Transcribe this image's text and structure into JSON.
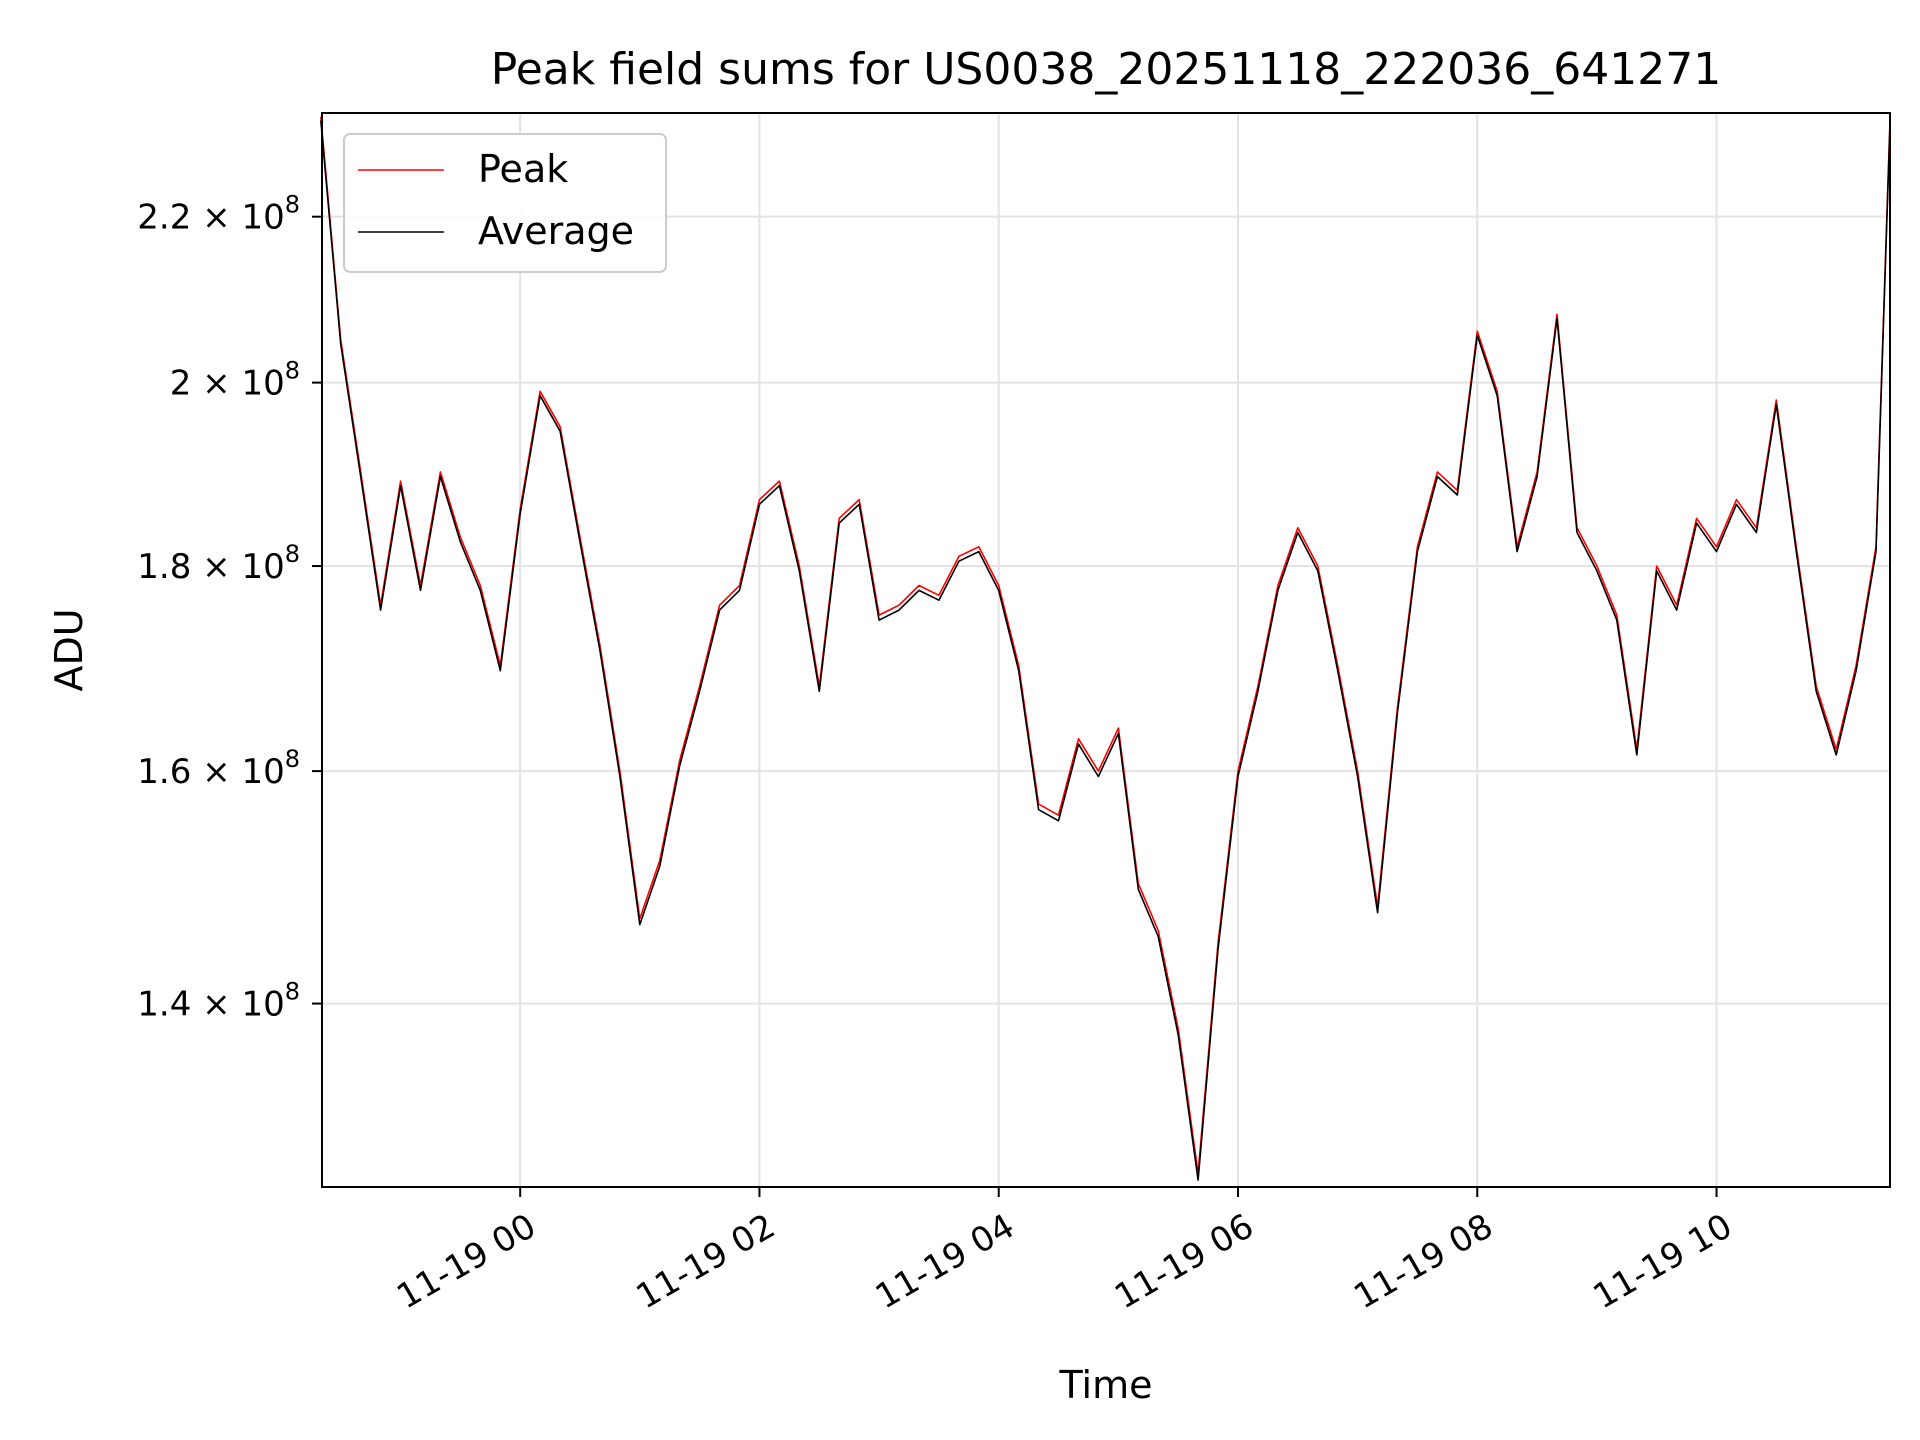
{
  "chart_data": {
    "type": "line",
    "title": "Peak field sums for US0038_20251118_222036_641271",
    "xlabel": "Time",
    "ylabel": "ADU",
    "y_scale": "log",
    "xlim": [
      "2025-11-18T22:20:36",
      "2025-11-19T11:27:00"
    ],
    "ylim": [
      126000000,
      233500000
    ],
    "x_ticks": [
      "11-19 00",
      "11-19 02",
      "11-19 04",
      "11-19 06",
      "11-19 08",
      "11-19 10"
    ],
    "x_tick_times": [
      "2025-11-19T00:00",
      "2025-11-19T02:00",
      "2025-11-19T04:00",
      "2025-11-19T06:00",
      "2025-11-19T08:00",
      "2025-11-19T10:00"
    ],
    "y_ticks": [
      {
        "value": 140000000,
        "mantissa": "1.4",
        "base": "10",
        "exp": "8"
      },
      {
        "value": 160000000,
        "mantissa": "1.6",
        "base": "10",
        "exp": "8"
      },
      {
        "value": 180000000,
        "mantissa": "1.8",
        "base": "10",
        "exp": "8"
      },
      {
        "value": 200000000,
        "mantissa": "2",
        "base": "10",
        "exp": "8"
      },
      {
        "value": 220000000,
        "mantissa": "2.2",
        "base": "10",
        "exp": "8"
      }
    ],
    "grid": true,
    "legend": {
      "position": "upper-left",
      "entries": [
        "Peak",
        "Average"
      ]
    },
    "series": [
      {
        "name": "Peak",
        "color": "#ff0000",
        "x": [
          "2025-11-18T22:20",
          "2025-11-18T22:30",
          "2025-11-18T22:40",
          "2025-11-18T22:50",
          "2025-11-18T23:00",
          "2025-11-18T23:10",
          "2025-11-18T23:20",
          "2025-11-18T23:30",
          "2025-11-18T23:40",
          "2025-11-18T23:50",
          "2025-11-19T00:00",
          "2025-11-19T00:10",
          "2025-11-19T00:20",
          "2025-11-19T00:30",
          "2025-11-19T00:40",
          "2025-11-19T00:50",
          "2025-11-19T01:00",
          "2025-11-19T01:10",
          "2025-11-19T01:20",
          "2025-11-19T01:30",
          "2025-11-19T01:40",
          "2025-11-19T01:50",
          "2025-11-19T02:00",
          "2025-11-19T02:10",
          "2025-11-19T02:20",
          "2025-11-19T02:30",
          "2025-11-19T02:40",
          "2025-11-19T02:50",
          "2025-11-19T03:00",
          "2025-11-19T03:10",
          "2025-11-19T03:20",
          "2025-11-19T03:30",
          "2025-11-19T03:40",
          "2025-11-19T03:50",
          "2025-11-19T04:00",
          "2025-11-19T04:10",
          "2025-11-19T04:20",
          "2025-11-19T04:30",
          "2025-11-19T04:40",
          "2025-11-19T04:50",
          "2025-11-19T05:00",
          "2025-11-19T05:10",
          "2025-11-19T05:20",
          "2025-11-19T05:30",
          "2025-11-19T05:40",
          "2025-11-19T05:50",
          "2025-11-19T06:00",
          "2025-11-19T06:10",
          "2025-11-19T06:20",
          "2025-11-19T06:30",
          "2025-11-19T06:40",
          "2025-11-19T06:50",
          "2025-11-19T07:00",
          "2025-11-19T07:10",
          "2025-11-19T07:20",
          "2025-11-19T07:30",
          "2025-11-19T07:40",
          "2025-11-19T07:50",
          "2025-11-19T08:00",
          "2025-11-19T08:10",
          "2025-11-19T08:20",
          "2025-11-19T08:30",
          "2025-11-19T08:40",
          "2025-11-19T08:50",
          "2025-11-19T09:00",
          "2025-11-19T09:10",
          "2025-11-19T09:20",
          "2025-11-19T09:30",
          "2025-11-19T09:40",
          "2025-11-19T09:50",
          "2025-11-19T10:00",
          "2025-11-19T10:10",
          "2025-11-19T10:20",
          "2025-11-19T10:30",
          "2025-11-19T10:40",
          "2025-11-19T10:50",
          "2025-11-19T11:00",
          "2025-11-19T11:10",
          "2025-11-19T11:20",
          "2025-11-19T11:27"
        ],
        "values": [
          233000000,
          205000000,
          190000000,
          176000000,
          189000000,
          178000000,
          190000000,
          183000000,
          178000000,
          170000000,
          186000000,
          199000000,
          195000000,
          183000000,
          172000000,
          160000000,
          147000000,
          152000000,
          161000000,
          168000000,
          176000000,
          178000000,
          187000000,
          189000000,
          180000000,
          168000000,
          185000000,
          187000000,
          175000000,
          176000000,
          178000000,
          177000000,
          181000000,
          182000000,
          178000000,
          170000000,
          157000000,
          156000000,
          163000000,
          160000000,
          164000000,
          150000000,
          146000000,
          138000000,
          127000000,
          145000000,
          160000000,
          168000000,
          178000000,
          184000000,
          180000000,
          170000000,
          160000000,
          148000000,
          166000000,
          182000000,
          190000000,
          188000000,
          206000000,
          199000000,
          182000000,
          190000000,
          208000000,
          184000000,
          180000000,
          175000000,
          162000000,
          180000000,
          176000000,
          185000000,
          182000000,
          187000000,
          184000000,
          198000000,
          182000000,
          168000000,
          162000000,
          170000000,
          182000000,
          232500000
        ]
      },
      {
        "name": "Average",
        "color": "#000000",
        "x": [
          "2025-11-18T22:20",
          "2025-11-18T22:30",
          "2025-11-18T22:40",
          "2025-11-18T22:50",
          "2025-11-18T23:00",
          "2025-11-18T23:10",
          "2025-11-18T23:20",
          "2025-11-18T23:30",
          "2025-11-18T23:40",
          "2025-11-18T23:50",
          "2025-11-19T00:00",
          "2025-11-19T00:10",
          "2025-11-19T00:20",
          "2025-11-19T00:30",
          "2025-11-19T00:40",
          "2025-11-19T00:50",
          "2025-11-19T01:00",
          "2025-11-19T01:10",
          "2025-11-19T01:20",
          "2025-11-19T01:30",
          "2025-11-19T01:40",
          "2025-11-19T01:50",
          "2025-11-19T02:00",
          "2025-11-19T02:10",
          "2025-11-19T02:20",
          "2025-11-19T02:30",
          "2025-11-19T02:40",
          "2025-11-19T02:50",
          "2025-11-19T03:00",
          "2025-11-19T03:10",
          "2025-11-19T03:20",
          "2025-11-19T03:30",
          "2025-11-19T03:40",
          "2025-11-19T03:50",
          "2025-11-19T04:00",
          "2025-11-19T04:10",
          "2025-11-19T04:20",
          "2025-11-19T04:30",
          "2025-11-19T04:40",
          "2025-11-19T04:50",
          "2025-11-19T05:00",
          "2025-11-19T05:10",
          "2025-11-19T05:20",
          "2025-11-19T05:30",
          "2025-11-19T05:40",
          "2025-11-19T05:50",
          "2025-11-19T06:00",
          "2025-11-19T06:10",
          "2025-11-19T06:20",
          "2025-11-19T06:30",
          "2025-11-19T06:40",
          "2025-11-19T06:50",
          "2025-11-19T07:00",
          "2025-11-19T07:10",
          "2025-11-19T07:20",
          "2025-11-19T07:30",
          "2025-11-19T07:40",
          "2025-11-19T07:50",
          "2025-11-19T08:00",
          "2025-11-19T08:10",
          "2025-11-19T08:20",
          "2025-11-19T08:30",
          "2025-11-19T08:40",
          "2025-11-19T08:50",
          "2025-11-19T09:00",
          "2025-11-19T09:10",
          "2025-11-19T09:20",
          "2025-11-19T09:30",
          "2025-11-19T09:40",
          "2025-11-19T09:50",
          "2025-11-19T10:00",
          "2025-11-19T10:10",
          "2025-11-19T10:20",
          "2025-11-19T10:30",
          "2025-11-19T10:40",
          "2025-11-19T10:50",
          "2025-11-19T11:00",
          "2025-11-19T11:10",
          "2025-11-19T11:20",
          "2025-11-19T11:27"
        ],
        "values": [
          232500000,
          204500000,
          189500000,
          175500000,
          188500000,
          177500000,
          189500000,
          182500000,
          177500000,
          169500000,
          185500000,
          198500000,
          194500000,
          182500000,
          171500000,
          159500000,
          146500000,
          151500000,
          160500000,
          167500000,
          175500000,
          177500000,
          186500000,
          188500000,
          179500000,
          167500000,
          184500000,
          186500000,
          174500000,
          175500000,
          177500000,
          176500000,
          180500000,
          181500000,
          177500000,
          169500000,
          156500000,
          155500000,
          162500000,
          159500000,
          163500000,
          149500000,
          145500000,
          137500000,
          126500000,
          144500000,
          159500000,
          167500000,
          177500000,
          183500000,
          179500000,
          169500000,
          159500000,
          147500000,
          165500000,
          181500000,
          189500000,
          187500000,
          205500000,
          198500000,
          181500000,
          189500000,
          207500000,
          183500000,
          179500000,
          174500000,
          161500000,
          179500000,
          175500000,
          184500000,
          181500000,
          186500000,
          183500000,
          197500000,
          181500000,
          167500000,
          161500000,
          169500000,
          181500000,
          232000000
        ]
      }
    ]
  }
}
